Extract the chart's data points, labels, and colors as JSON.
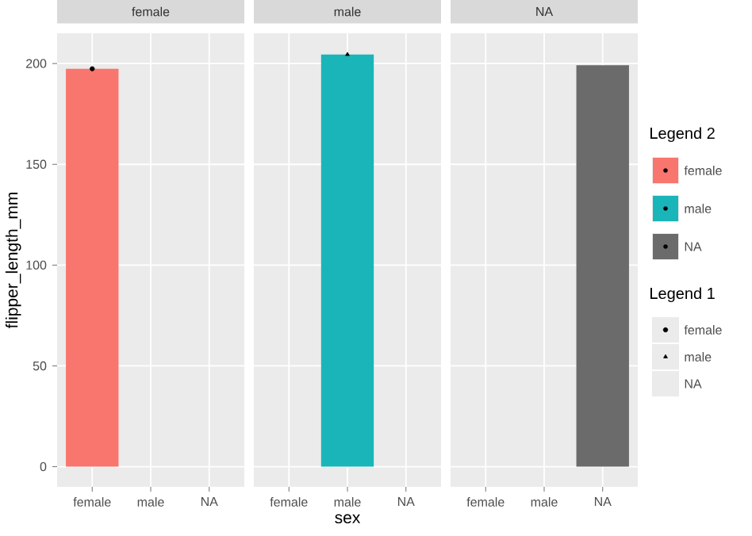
{
  "chart_data": [
    {
      "type": "bar",
      "title": "female",
      "categories": [
        "female",
        "male",
        "NA"
      ],
      "ylabel": "flipper_length_mm",
      "ylim": [
        -10,
        215
      ],
      "yticks": [
        0,
        50,
        100,
        150,
        200
      ],
      "grid": true,
      "series": [
        {
          "name": "female",
          "color": "#f8766d",
          "values": [
            197.4,
            null,
            null
          ]
        },
        {
          "name": "female",
          "type": "scatter",
          "color": "#000000",
          "marker": "circle",
          "values": [
            197.4,
            null,
            null
          ]
        }
      ]
    },
    {
      "type": "bar",
      "title": "male",
      "categories": [
        "female",
        "male",
        "NA"
      ],
      "xlabel": "sex",
      "ylim": [
        -10,
        215
      ],
      "yticks": [
        0,
        50,
        100,
        150,
        200
      ],
      "grid": true,
      "tick_labels": "x",
      "legend": "right",
      "legend_title": "Legend 1",
      "series": [
        {
          "name": "male",
          "color": "#1ab5b9",
          "values": [
            null,
            204.5,
            null
          ]
        },
        {
          "name": "male",
          "type": "scatter",
          "color": "#000000",
          "marker": "triangle",
          "values": [
            null,
            204.5,
            null
          ]
        }
      ]
    },
    {
      "type": "bar",
      "title": "NA",
      "categories": [
        "female",
        "male",
        "NA"
      ],
      "ylim": [
        -10,
        215
      ],
      "yticks": [
        0,
        50,
        100,
        150,
        200
      ],
      "grid": true,
      "tick_labels": "x",
      "legend": "right",
      "legend_title": "Legend 2",
      "series": [
        {
          "name": "NA",
          "color": "#6b6b6b",
          "values": [
            null,
            null,
            199.2
          ]
        },
        {
          "name": "NA",
          "type": "scatter",
          "marker": "none",
          "values": [
            null,
            null,
            null
          ]
        }
      ]
    }
  ]
}
